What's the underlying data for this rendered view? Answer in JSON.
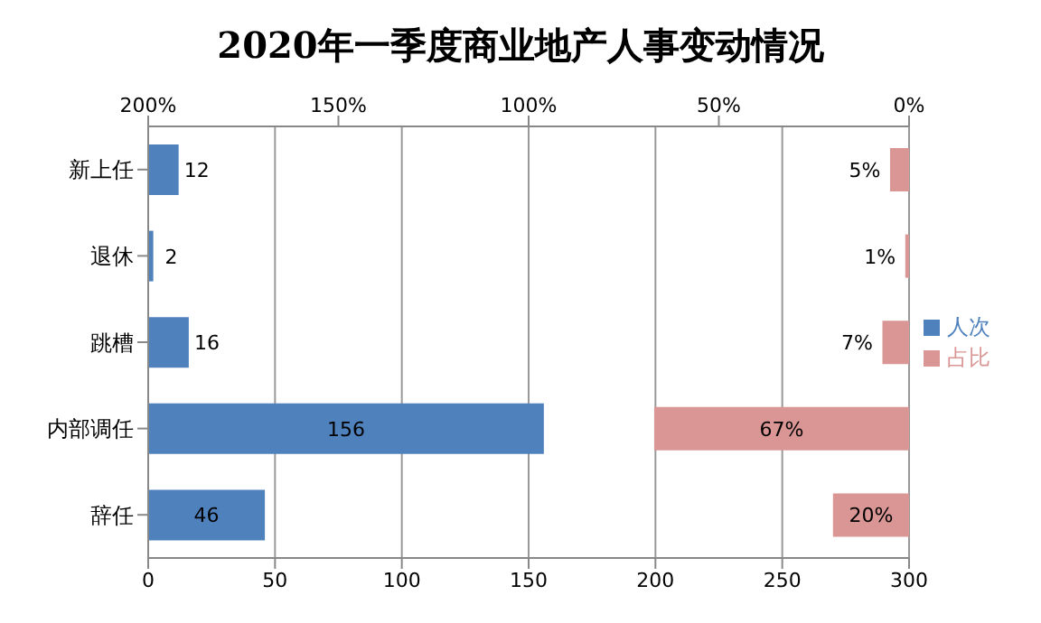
{
  "chart_data": {
    "type": "bar",
    "orientation": "horizontal",
    "title": "2020年一季度商业地产人事变动情况",
    "categories": [
      "新上任",
      "退休",
      "跳槽",
      "内部调任",
      "辞任"
    ],
    "series": [
      {
        "name": "人次",
        "color": "#4f81bd",
        "values": [
          12,
          2,
          16,
          156,
          46
        ],
        "value_labels": [
          "12",
          "2",
          "16",
          "156",
          "46"
        ]
      },
      {
        "name": "占比",
        "color": "#d99694",
        "values": [
          5,
          1,
          7,
          67,
          20
        ],
        "axis": "x2",
        "value_labels": [
          "5%",
          "1%",
          "7%",
          "67%",
          "20%"
        ]
      }
    ],
    "xlim": [
      0,
      300
    ],
    "xticks": [
      0,
      50,
      100,
      150,
      200,
      250,
      300
    ],
    "x2lim": [
      200,
      0
    ],
    "x2ticks": [
      {
        "value": 200,
        "label": "200%"
      },
      {
        "value": 150,
        "label": "150%"
      },
      {
        "value": 100,
        "label": "100%"
      },
      {
        "value": 50,
        "label": "50%"
      },
      {
        "value": 0,
        "label": "0%"
      }
    ],
    "grid": "x",
    "legend": "right"
  }
}
